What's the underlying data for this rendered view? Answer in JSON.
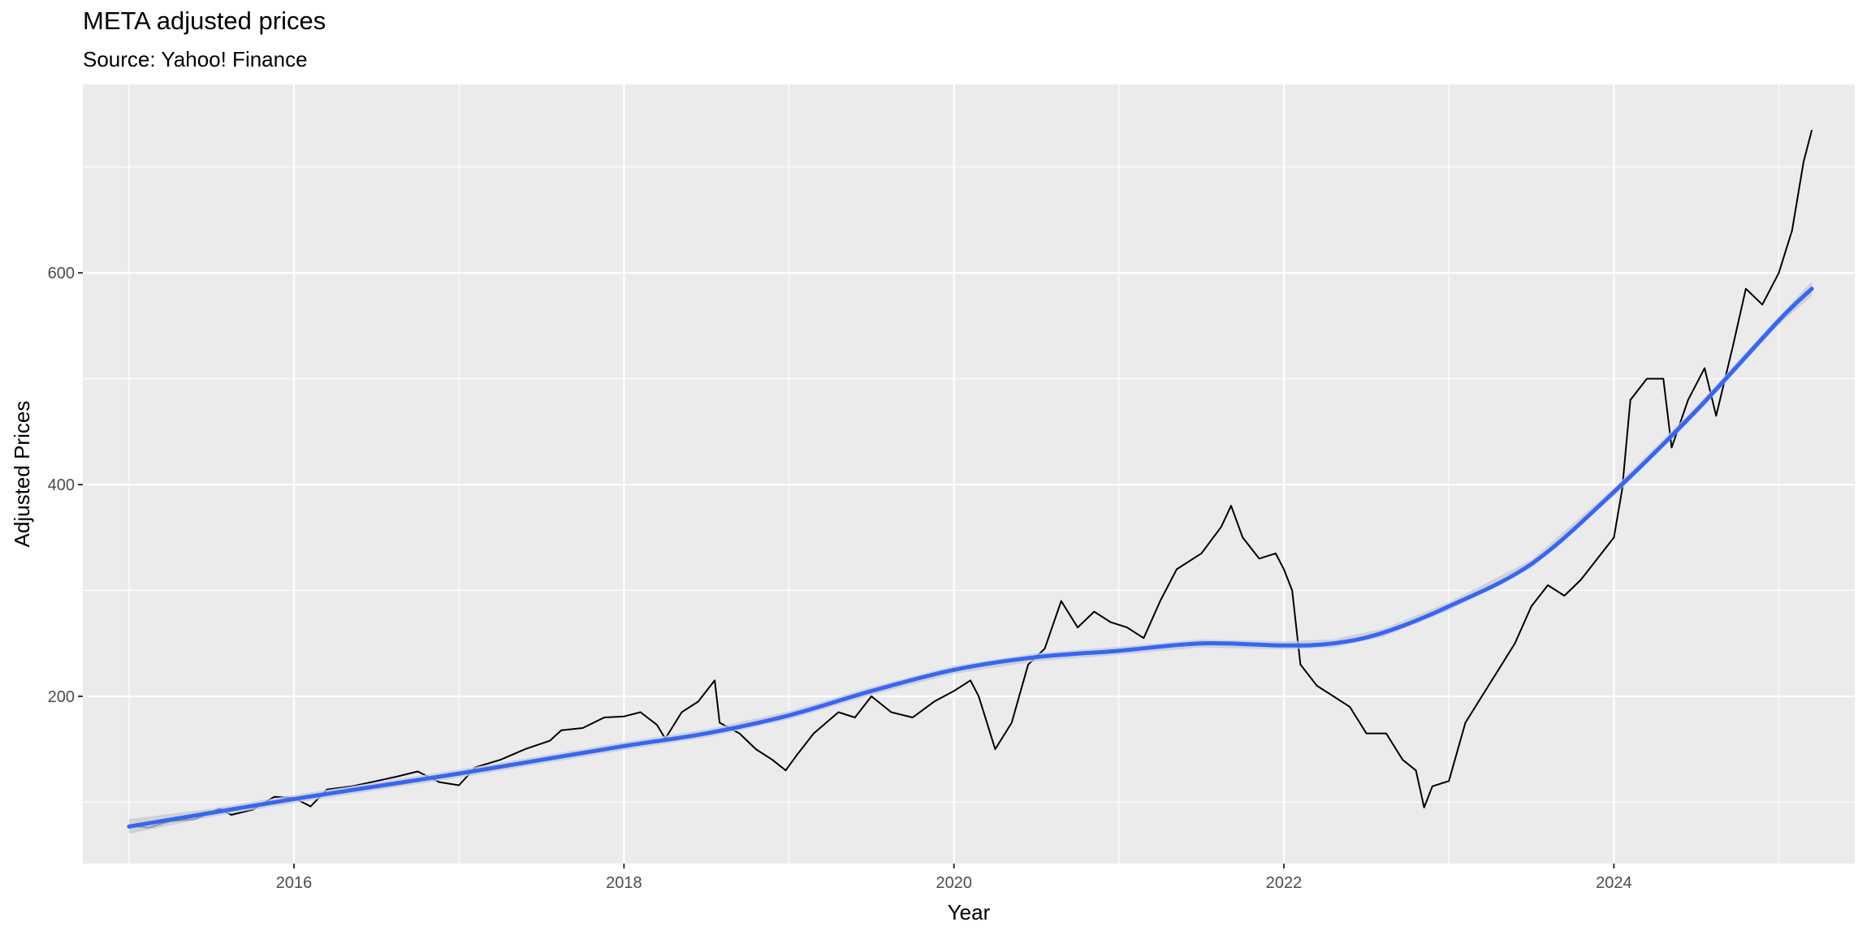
{
  "chart_data": {
    "type": "line",
    "title": "META adjusted prices",
    "subtitle": "Source: Yahoo! Finance",
    "xlabel": "Year",
    "ylabel": "Adjusted Prices",
    "xlim": [
      2014.72,
      2025.46
    ],
    "ylim": [
      42,
      778
    ],
    "x_ticks": [
      2016,
      2018,
      2020,
      2022,
      2024
    ],
    "x_tick_labels": [
      "2016",
      "2018",
      "2020",
      "2022",
      "2024"
    ],
    "y_ticks": [
      200,
      400,
      600
    ],
    "y_tick_labels": [
      "200",
      "400",
      "600"
    ],
    "grid": true,
    "background": "#ebebeb",
    "series": [
      {
        "kind": "price",
        "color": "#000000",
        "points": [
          [
            2015.0,
            78
          ],
          [
            2015.12,
            76
          ],
          [
            2015.25,
            82
          ],
          [
            2015.4,
            84
          ],
          [
            2015.55,
            94
          ],
          [
            2015.62,
            88
          ],
          [
            2015.75,
            93
          ],
          [
            2015.88,
            105
          ],
          [
            2016.0,
            104
          ],
          [
            2016.1,
            96
          ],
          [
            2016.2,
            112
          ],
          [
            2016.35,
            115
          ],
          [
            2016.5,
            120
          ],
          [
            2016.62,
            124
          ],
          [
            2016.75,
            129
          ],
          [
            2016.88,
            119
          ],
          [
            2017.0,
            116
          ],
          [
            2017.1,
            133
          ],
          [
            2017.25,
            140
          ],
          [
            2017.4,
            150
          ],
          [
            2017.55,
            158
          ],
          [
            2017.62,
            168
          ],
          [
            2017.75,
            170
          ],
          [
            2017.88,
            180
          ],
          [
            2018.0,
            181
          ],
          [
            2018.1,
            185
          ],
          [
            2018.2,
            173
          ],
          [
            2018.25,
            160
          ],
          [
            2018.35,
            185
          ],
          [
            2018.45,
            195
          ],
          [
            2018.55,
            215
          ],
          [
            2018.58,
            175
          ],
          [
            2018.7,
            165
          ],
          [
            2018.8,
            150
          ],
          [
            2018.9,
            140
          ],
          [
            2018.98,
            130
          ],
          [
            2019.05,
            145
          ],
          [
            2019.15,
            165
          ],
          [
            2019.3,
            185
          ],
          [
            2019.4,
            180
          ],
          [
            2019.5,
            200
          ],
          [
            2019.62,
            185
          ],
          [
            2019.75,
            180
          ],
          [
            2019.88,
            195
          ],
          [
            2020.0,
            205
          ],
          [
            2020.1,
            215
          ],
          [
            2020.15,
            200
          ],
          [
            2020.25,
            150
          ],
          [
            2020.35,
            175
          ],
          [
            2020.45,
            230
          ],
          [
            2020.55,
            245
          ],
          [
            2020.65,
            290
          ],
          [
            2020.75,
            265
          ],
          [
            2020.85,
            280
          ],
          [
            2020.95,
            270
          ],
          [
            2021.05,
            265
          ],
          [
            2021.15,
            255
          ],
          [
            2021.25,
            290
          ],
          [
            2021.35,
            320
          ],
          [
            2021.5,
            335
          ],
          [
            2021.62,
            360
          ],
          [
            2021.68,
            380
          ],
          [
            2021.75,
            350
          ],
          [
            2021.85,
            330
          ],
          [
            2021.95,
            335
          ],
          [
            2022.0,
            320
          ],
          [
            2022.05,
            300
          ],
          [
            2022.1,
            230
          ],
          [
            2022.2,
            210
          ],
          [
            2022.3,
            200
          ],
          [
            2022.4,
            190
          ],
          [
            2022.5,
            165
          ],
          [
            2022.62,
            165
          ],
          [
            2022.72,
            140
          ],
          [
            2022.8,
            130
          ],
          [
            2022.85,
            95
          ],
          [
            2022.9,
            115
          ],
          [
            2023.0,
            120
          ],
          [
            2023.1,
            175
          ],
          [
            2023.2,
            200
          ],
          [
            2023.3,
            225
          ],
          [
            2023.4,
            250
          ],
          [
            2023.5,
            285
          ],
          [
            2023.6,
            305
          ],
          [
            2023.7,
            295
          ],
          [
            2023.8,
            310
          ],
          [
            2023.9,
            330
          ],
          [
            2024.0,
            350
          ],
          [
            2024.05,
            395
          ],
          [
            2024.1,
            480
          ],
          [
            2024.2,
            500
          ],
          [
            2024.3,
            500
          ],
          [
            2024.35,
            435
          ],
          [
            2024.45,
            480
          ],
          [
            2024.55,
            510
          ],
          [
            2024.62,
            465
          ],
          [
            2024.72,
            530
          ],
          [
            2024.8,
            585
          ],
          [
            2024.9,
            570
          ],
          [
            2025.0,
            600
          ],
          [
            2025.08,
            640
          ],
          [
            2025.15,
            705
          ],
          [
            2025.2,
            735
          ]
        ]
      },
      {
        "kind": "smooth",
        "color": "#3366ff",
        "band_color": "#c8c8c8",
        "points": [
          [
            2015.0,
            77
          ],
          [
            2015.5,
            90
          ],
          [
            2016.0,
            103
          ],
          [
            2016.5,
            115
          ],
          [
            2017.0,
            127
          ],
          [
            2017.5,
            140
          ],
          [
            2018.0,
            153
          ],
          [
            2018.5,
            165
          ],
          [
            2019.0,
            182
          ],
          [
            2019.5,
            205
          ],
          [
            2020.0,
            225
          ],
          [
            2020.5,
            237
          ],
          [
            2021.0,
            243
          ],
          [
            2021.5,
            250
          ],
          [
            2022.0,
            248
          ],
          [
            2022.3,
            250
          ],
          [
            2022.6,
            260
          ],
          [
            2023.0,
            285
          ],
          [
            2023.5,
            325
          ],
          [
            2024.0,
            393
          ],
          [
            2024.5,
            470
          ],
          [
            2025.0,
            555
          ],
          [
            2025.2,
            585
          ]
        ]
      }
    ]
  }
}
